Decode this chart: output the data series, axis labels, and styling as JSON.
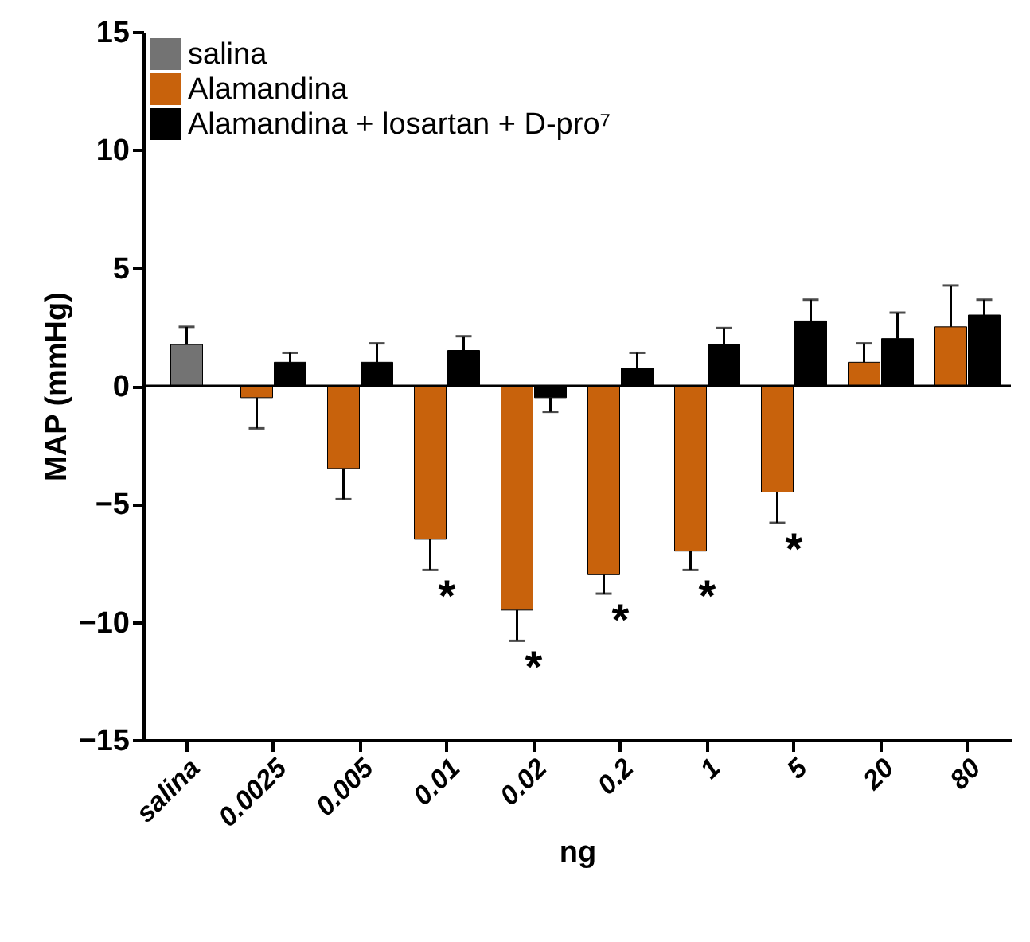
{
  "chart_data": {
    "type": "bar",
    "xlabel": "ng",
    "ylabel": "MAP (mmHg)",
    "categories": [
      "salina",
      "0.0025",
      "0.005",
      "0.01",
      "0.02",
      "0.2",
      "1",
      "5",
      "20",
      "80"
    ],
    "series": [
      {
        "name": "salina",
        "color": "#737373",
        "values": [
          1.75,
          null,
          null,
          null,
          null,
          null,
          null,
          null,
          null,
          null
        ],
        "errors": [
          [
            1.75,
            2.5
          ],
          null,
          null,
          null,
          null,
          null,
          null,
          null,
          null,
          null
        ]
      },
      {
        "name": "Alamandina",
        "color": "#c8620c",
        "values": [
          null,
          -0.5,
          -3.5,
          -6.5,
          -9.5,
          -8,
          -7,
          -4.5,
          1,
          2.5
        ],
        "errors": [
          null,
          [
            -1.8,
            -0.5
          ],
          [
            -4.8,
            -3.5
          ],
          [
            -7.8,
            -6.5
          ],
          [
            -10.8,
            -9.5
          ],
          [
            -8.8,
            -8
          ],
          [
            -7.8,
            -7
          ],
          [
            -5.8,
            -4.5
          ],
          [
            1,
            1.8
          ],
          [
            2.5,
            4.25
          ]
        ]
      },
      {
        "name": "Alamandina + losartan + D-pro⁷",
        "color": "#000000",
        "values": [
          null,
          1,
          1,
          1.5,
          -0.5,
          0.75,
          1.75,
          2.75,
          2,
          3
        ],
        "errors": [
          null,
          [
            1,
            1.4
          ],
          [
            1,
            1.8
          ],
          [
            1.5,
            2.1
          ],
          [
            -1.1,
            -0.5
          ],
          [
            0.75,
            1.4
          ],
          [
            1.75,
            2.45
          ],
          [
            2.75,
            3.65
          ],
          [
            2,
            3.1
          ],
          [
            3,
            3.65
          ]
        ]
      }
    ],
    "ylim": [
      -15,
      15
    ],
    "yticks": [
      -15,
      -10,
      -5,
      0,
      5,
      10,
      15
    ],
    "legend": "top left",
    "ref_lines": [
      {
        "axis": "y",
        "value": 0
      }
    ],
    "annotations": [
      {
        "text": "*",
        "x": "0.01",
        "y": -6.5
      },
      {
        "text": "*",
        "x": "0.02",
        "y": -9.5
      },
      {
        "text": "*",
        "x": "0.2",
        "y": -8
      },
      {
        "text": "*",
        "x": "1",
        "y": -7
      },
      {
        "text": "*",
        "x": "5",
        "y": -4.5
      }
    ]
  }
}
